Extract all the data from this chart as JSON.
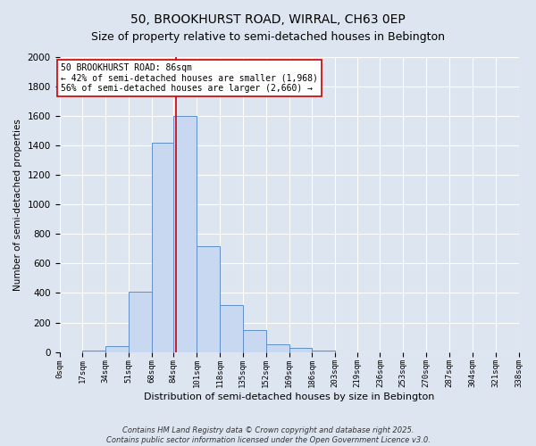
{
  "title": "50, BROOKHURST ROAD, WIRRAL, CH63 0EP",
  "subtitle": "Size of property relative to semi-detached houses in Bebington",
  "xlabel": "Distribution of semi-detached houses by size in Bebington",
  "ylabel": "Number of semi-detached properties",
  "bin_labels": [
    "0sqm",
    "17sqm",
    "34sqm",
    "51sqm",
    "68sqm",
    "84sqm",
    "101sqm",
    "118sqm",
    "135sqm",
    "152sqm",
    "169sqm",
    "186sqm",
    "203sqm",
    "219sqm",
    "236sqm",
    "253sqm",
    "270sqm",
    "287sqm",
    "304sqm",
    "321sqm",
    "338sqm"
  ],
  "bin_edges": [
    0,
    17,
    34,
    51,
    68,
    84,
    101,
    118,
    135,
    152,
    169,
    186,
    203,
    219,
    236,
    253,
    270,
    287,
    304,
    321,
    338
  ],
  "bar_heights": [
    0,
    10,
    40,
    410,
    1420,
    1600,
    720,
    320,
    150,
    50,
    30,
    10,
    0,
    0,
    0,
    0,
    0,
    0,
    0,
    0
  ],
  "bar_facecolor": "#c8d8f0",
  "bar_edgecolor": "#6090c8",
  "property_size": 86,
  "vline_color": "#cc0000",
  "annotation_line1": "50 BROOKHURST ROAD: 86sqm",
  "annotation_line2": "← 42% of semi-detached houses are smaller (1,968)",
  "annotation_line3": "56% of semi-detached houses are larger (2,660) →",
  "annotation_box_edgecolor": "#cc0000",
  "annotation_box_facecolor": "#ffffff",
  "ylim": [
    0,
    2000
  ],
  "yticks": [
    0,
    200,
    400,
    600,
    800,
    1000,
    1200,
    1400,
    1600,
    1800,
    2000
  ],
  "background_color": "#dde6f0",
  "footer": "Contains HM Land Registry data © Crown copyright and database right 2025.\nContains public sector information licensed under the Open Government Licence v3.0.",
  "title_fontsize": 10,
  "subtitle_fontsize": 9,
  "annotation_fontsize": 7,
  "footer_fontsize": 6,
  "ylabel_fontsize": 7.5,
  "xlabel_fontsize": 8,
  "ytick_fontsize": 7.5,
  "xtick_fontsize": 6.5
}
